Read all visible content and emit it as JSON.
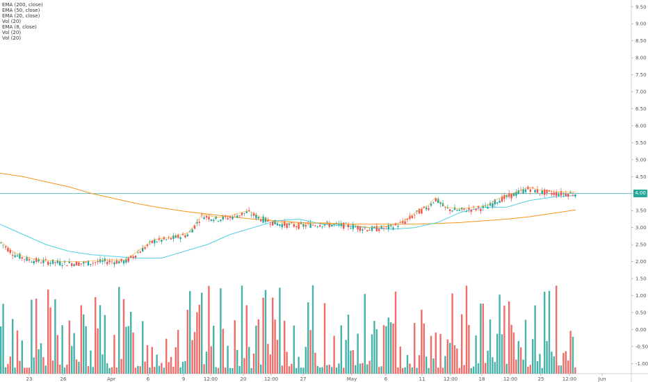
{
  "legend": [
    "EMA (200, close)",
    "EMA (50, close)",
    "EMA (20, close)",
    "Vol (20)",
    "EMA (8, close)",
    "Vol (20)",
    "Vol (20)"
  ],
  "current_price_label": "4.00",
  "colors": {
    "up": "#26a69a",
    "down": "#ef5350",
    "ema200": "#f7931a",
    "ema50": "#ffa726",
    "ema20": "#4dd0e1",
    "ema8": "#9c27b0",
    "price_line": "#26a69a"
  },
  "chart_data": {
    "type": "candlestick",
    "y_ticks": [
      "9.50",
      "9.00",
      "8.50",
      "8.00",
      "7.50",
      "7.00",
      "6.50",
      "6.00",
      "5.50",
      "5.00",
      "4.50",
      "4.00",
      "3.50",
      "3.00",
      "2.50",
      "2.00",
      "1.50",
      "1.00",
      "0.50",
      "0.00",
      "-0.50",
      "-1.00"
    ],
    "x_ticks": [
      "23",
      "26",
      "Apr",
      "6",
      "9",
      "12:00",
      "20",
      "12:00",
      "27",
      "May",
      "6",
      "11",
      "12:00",
      "18",
      "12:00",
      "25",
      "12:00",
      "Jun"
    ],
    "ylim": [
      -1.3,
      9.7
    ],
    "horizontal_line": 4.0,
    "series": [
      {
        "name": "EMA (200, close)",
        "values": [
          4.6,
          4.5,
          4.35,
          4.2,
          4.0,
          3.85,
          3.7,
          3.58,
          3.48,
          3.4,
          3.32,
          3.25,
          3.2,
          3.15,
          3.12,
          3.1,
          3.1,
          3.1,
          3.1,
          3.12,
          3.15,
          3.2,
          3.25,
          3.32,
          3.42,
          3.52
        ]
      },
      {
        "name": "EMA (20, close)",
        "values": [
          3.1,
          2.8,
          2.5,
          2.3,
          2.2,
          2.15,
          2.1,
          2.1,
          2.3,
          2.5,
          2.8,
          3.0,
          3.2,
          3.25,
          3.1,
          3.05,
          3.0,
          2.95,
          3.0,
          3.15,
          3.45,
          3.6,
          3.6,
          3.8,
          3.9,
          3.95
        ]
      }
    ]
  }
}
